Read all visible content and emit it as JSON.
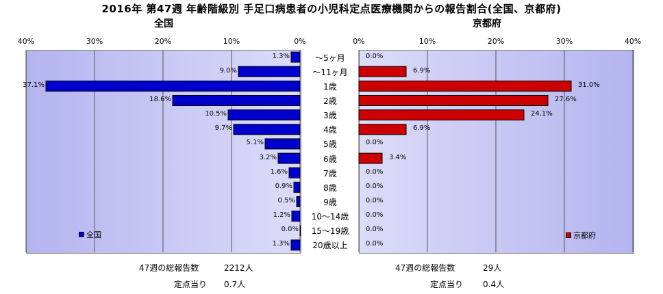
{
  "chart_data": [
    {
      "type": "bar",
      "orientation": "horizontal",
      "direction": "right-to-left",
      "title": "2016年 第47週 年齢階級別 手足口病患者の小児科定点医療機関からの報告割合(全国、京都府)",
      "subtitle": "全国",
      "categories": [
        "～5ヶ月",
        "～11ヶ月",
        "1歳",
        "2歳",
        "3歳",
        "4歳",
        "5歳",
        "6歳",
        "7歳",
        "8歳",
        "9歳",
        "10～14歳",
        "15～19歳",
        "20歳以上"
      ],
      "series": [
        {
          "name": "全国",
          "values": [
            1.3,
            9.0,
            37.1,
            18.6,
            10.5,
            9.7,
            5.1,
            3.2,
            1.6,
            0.9,
            0.5,
            1.2,
            0.0,
            1.3
          ]
        }
      ],
      "value_labels": [
        "1.3%",
        "9.0%",
        "37.1%",
        "18.6%",
        "10.5%",
        "9.7%",
        "5.1%",
        "3.2%",
        "1.6%",
        "0.9%",
        "0.5%",
        "1.2%",
        "0.0%",
        "1.3%"
      ],
      "xlim": [
        0,
        40
      ],
      "tick_labels": [
        "40%",
        "30%",
        "20%",
        "10%",
        "0%"
      ],
      "color": "#0000cc",
      "legend": "bottom-left",
      "grid": true
    },
    {
      "type": "bar",
      "orientation": "horizontal",
      "subtitle": "京都府",
      "categories": [
        "～5ヶ月",
        "～11ヶ月",
        "1歳",
        "2歳",
        "3歳",
        "4歳",
        "5歳",
        "6歳",
        "7歳",
        "8歳",
        "9歳",
        "10～14歳",
        "15～19歳",
        "20歳以上"
      ],
      "series": [
        {
          "name": "京都府",
          "values": [
            0.0,
            6.9,
            31.0,
            27.6,
            24.1,
            6.9,
            0.0,
            3.4,
            0.0,
            0.0,
            0.0,
            0.0,
            0.0,
            0.0
          ]
        }
      ],
      "value_labels": [
        "0.0%",
        "6.9%",
        "31.0%",
        "27.6%",
        "24.1%",
        "6.9%",
        "0.0%",
        "3.4%",
        "0.0%",
        "0.0%",
        "0.0%",
        "0.0%",
        "0.0%",
        "0.0%"
      ],
      "xlim": [
        0,
        40
      ],
      "tick_labels": [
        "0%",
        "10%",
        "20%",
        "30%",
        "40%"
      ],
      "color": "#cc0000",
      "legend": "bottom-right",
      "grid": true
    }
  ],
  "stats": {
    "national": {
      "total_label": "47週の総報告数",
      "total_value": "2212人",
      "per_label": "定点当り",
      "per_value": "0.7人"
    },
    "kyoto": {
      "total_label": "47週の総報告数",
      "total_value": "29人",
      "per_label": "定点当り",
      "per_value": "0.4人"
    }
  }
}
